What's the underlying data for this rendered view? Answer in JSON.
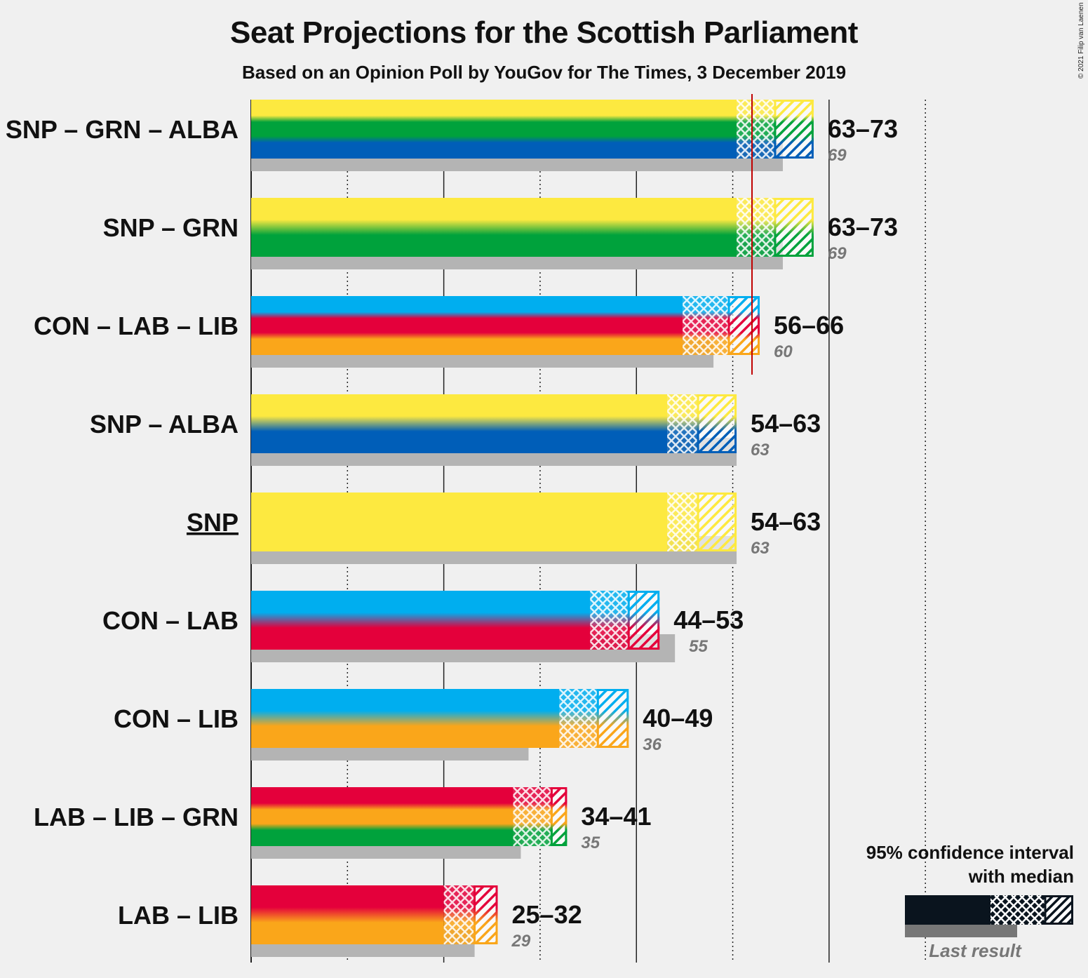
{
  "title": "Seat Projections for the Scottish Parliament",
  "subtitle": "Based on an Opinion Poll by YouGov for The Times, 3 December 2019",
  "copyright": "© 2021 Filip van Laenen",
  "colors": {
    "SNP": "#fde940",
    "GRN": "#00a23c",
    "ALBA": "#005eb8",
    "CON": "#00aeef",
    "LAB": "#e4003b",
    "LIB": "#faa61a",
    "last_result": "#b4b4b4",
    "majority_line": "#c00000",
    "legend_dark": "#0a141e"
  },
  "legend": {
    "title_line1": "95% confidence interval",
    "title_line2": "with median",
    "last_result": "Last result"
  },
  "chart_data": {
    "type": "bar",
    "orientation": "horizontal",
    "x_axis": {
      "min": 0,
      "major_gridlines": [
        0,
        25,
        50,
        75
      ],
      "minor_gridlines": [
        12.5,
        37.5,
        62.5,
        87.5
      ]
    },
    "majority_line": 65,
    "rows": [
      {
        "label": "SNP – GRN – ALBA",
        "parties": [
          "SNP",
          "GRN",
          "ALBA"
        ],
        "low": 63,
        "median": 68,
        "high": 73,
        "range_label": "63–73",
        "last_result": 69,
        "last_result_label": "69",
        "underlined": false
      },
      {
        "label": "SNP – GRN",
        "parties": [
          "SNP",
          "GRN"
        ],
        "low": 63,
        "median": 68,
        "high": 73,
        "range_label": "63–73",
        "last_result": 69,
        "last_result_label": "69",
        "underlined": false
      },
      {
        "label": "CON – LAB – LIB",
        "parties": [
          "CON",
          "LAB",
          "LIB"
        ],
        "low": 56,
        "median": 62,
        "high": 66,
        "range_label": "56–66",
        "last_result": 60,
        "last_result_label": "60",
        "underlined": false
      },
      {
        "label": "SNP – ALBA",
        "parties": [
          "SNP",
          "ALBA"
        ],
        "low": 54,
        "median": 58,
        "high": 63,
        "range_label": "54–63",
        "last_result": 63,
        "last_result_label": "63",
        "underlined": false
      },
      {
        "label": "SNP",
        "parties": [
          "SNP"
        ],
        "low": 54,
        "median": 58,
        "high": 63,
        "range_label": "54–63",
        "last_result": 63,
        "last_result_label": "63",
        "underlined": true
      },
      {
        "label": "CON – LAB",
        "parties": [
          "CON",
          "LAB"
        ],
        "low": 44,
        "median": 49,
        "high": 53,
        "range_label": "44–53",
        "last_result": 55,
        "last_result_label": "55",
        "underlined": false
      },
      {
        "label": "CON – LIB",
        "parties": [
          "CON",
          "LIB"
        ],
        "low": 40,
        "median": 45,
        "high": 49,
        "range_label": "40–49",
        "last_result": 36,
        "last_result_label": "36",
        "underlined": false
      },
      {
        "label": "LAB – LIB – GRN",
        "parties": [
          "LAB",
          "LIB",
          "GRN"
        ],
        "low": 34,
        "median": 39,
        "high": 41,
        "range_label": "34–41",
        "last_result": 35,
        "last_result_label": "35",
        "underlined": false
      },
      {
        "label": "LAB – LIB",
        "parties": [
          "LAB",
          "LIB"
        ],
        "low": 25,
        "median": 29,
        "high": 32,
        "range_label": "25–32",
        "last_result": 29,
        "last_result_label": "29",
        "underlined": false
      }
    ]
  }
}
